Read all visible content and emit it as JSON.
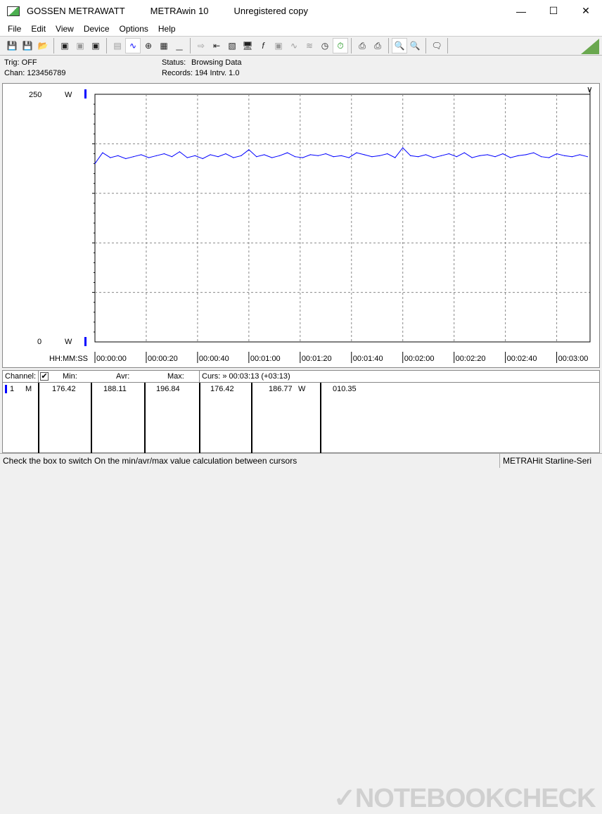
{
  "window": {
    "brand": "GOSSEN METRAWATT",
    "app": "METRAwin 10",
    "license": "Unregistered copy",
    "controls": [
      "minimize",
      "maximize",
      "close"
    ]
  },
  "menu": [
    "File",
    "Edit",
    "View",
    "Device",
    "Options",
    "Help"
  ],
  "toolbar": {
    "icons": [
      "save-icon",
      "save-as-icon",
      "open-folder-icon",
      "read-device-icon",
      "read-device-disabled-icon",
      "read-memory-icon",
      "display-digital-icon",
      "display-graph-icon",
      "crosshair-icon",
      "table-icon",
      "histogram-icon",
      "transfer-icon",
      "export-icon",
      "logger-icon",
      "monitor-icon",
      "function-icon",
      "device-icon",
      "wave-icon",
      "wave-grid-icon",
      "clock-icon",
      "stopwatch-icon",
      "print-icon",
      "printer-icon",
      "zoom-wave-icon",
      "zoom-peak-icon",
      "comment-icon"
    ]
  },
  "info": {
    "trig": "Trig: OFF",
    "chan": "Chan:  123456789",
    "status_label": "Status:",
    "status_value": "Browsing Data",
    "records": "Records: 194   Intrv. 1.0"
  },
  "chart_data": {
    "type": "line",
    "ylim": [
      0,
      250
    ],
    "y_top_label": "250",
    "y_bottom_label": "0",
    "y_unit": "W",
    "xlabel": "HH:MM:SS",
    "x_ticks": [
      "00:00:00",
      "00:00:20",
      "00:00:40",
      "00:01:00",
      "00:01:20",
      "00:01:40",
      "00:02:00",
      "00:02:20",
      "00:02:40",
      "00:03:00"
    ],
    "xlim_seconds": [
      0,
      193
    ],
    "grid": true,
    "color": "#0000ff",
    "x_seconds": [
      0,
      3,
      6,
      9,
      12,
      15,
      18,
      21,
      24,
      27,
      30,
      33,
      36,
      39,
      42,
      45,
      48,
      51,
      54,
      57,
      60,
      63,
      66,
      69,
      72,
      75,
      78,
      81,
      84,
      87,
      90,
      93,
      96,
      99,
      102,
      105,
      108,
      111,
      114,
      117,
      120,
      123,
      126,
      129,
      132,
      135,
      138,
      141,
      144,
      147,
      150,
      153,
      156,
      159,
      162,
      165,
      168,
      171,
      174,
      177,
      180,
      183,
      186,
      189,
      192
    ],
    "values": [
      180,
      191,
      186,
      188,
      185,
      187,
      189,
      186,
      188,
      190,
      187,
      192,
      186,
      188,
      185,
      189,
      187,
      190,
      186,
      188,
      194,
      187,
      189,
      186,
      188,
      191,
      187,
      186,
      189,
      188,
      190,
      187,
      188,
      186,
      191,
      189,
      187,
      188,
      190,
      186,
      196,
      188,
      187,
      189,
      186,
      188,
      190,
      187,
      191,
      186,
      188,
      189,
      187,
      190,
      186,
      188,
      189,
      191,
      187,
      186,
      190,
      188,
      187,
      189,
      187
    ]
  },
  "table": {
    "channel_header": "Channel:",
    "checkbox_checked": true,
    "min_header": "Min:",
    "avr_header": "Avr:",
    "max_header": "Max:",
    "cursor_header": "Curs: » 00:03:13 (+03:13)",
    "row": {
      "channel": "1",
      "mode": "M",
      "min": "176.42",
      "avr": "188.11",
      "max": "196.84",
      "curs_min": "176.42",
      "curs_value": "186.77",
      "unit": "W",
      "extra": "010.35"
    }
  },
  "status": {
    "hint": "Check the box to switch On the min/avr/max value calculation between cursors",
    "device": "METRAHit Starline-Seri"
  },
  "watermark": "NOTEBOOKCHECK"
}
